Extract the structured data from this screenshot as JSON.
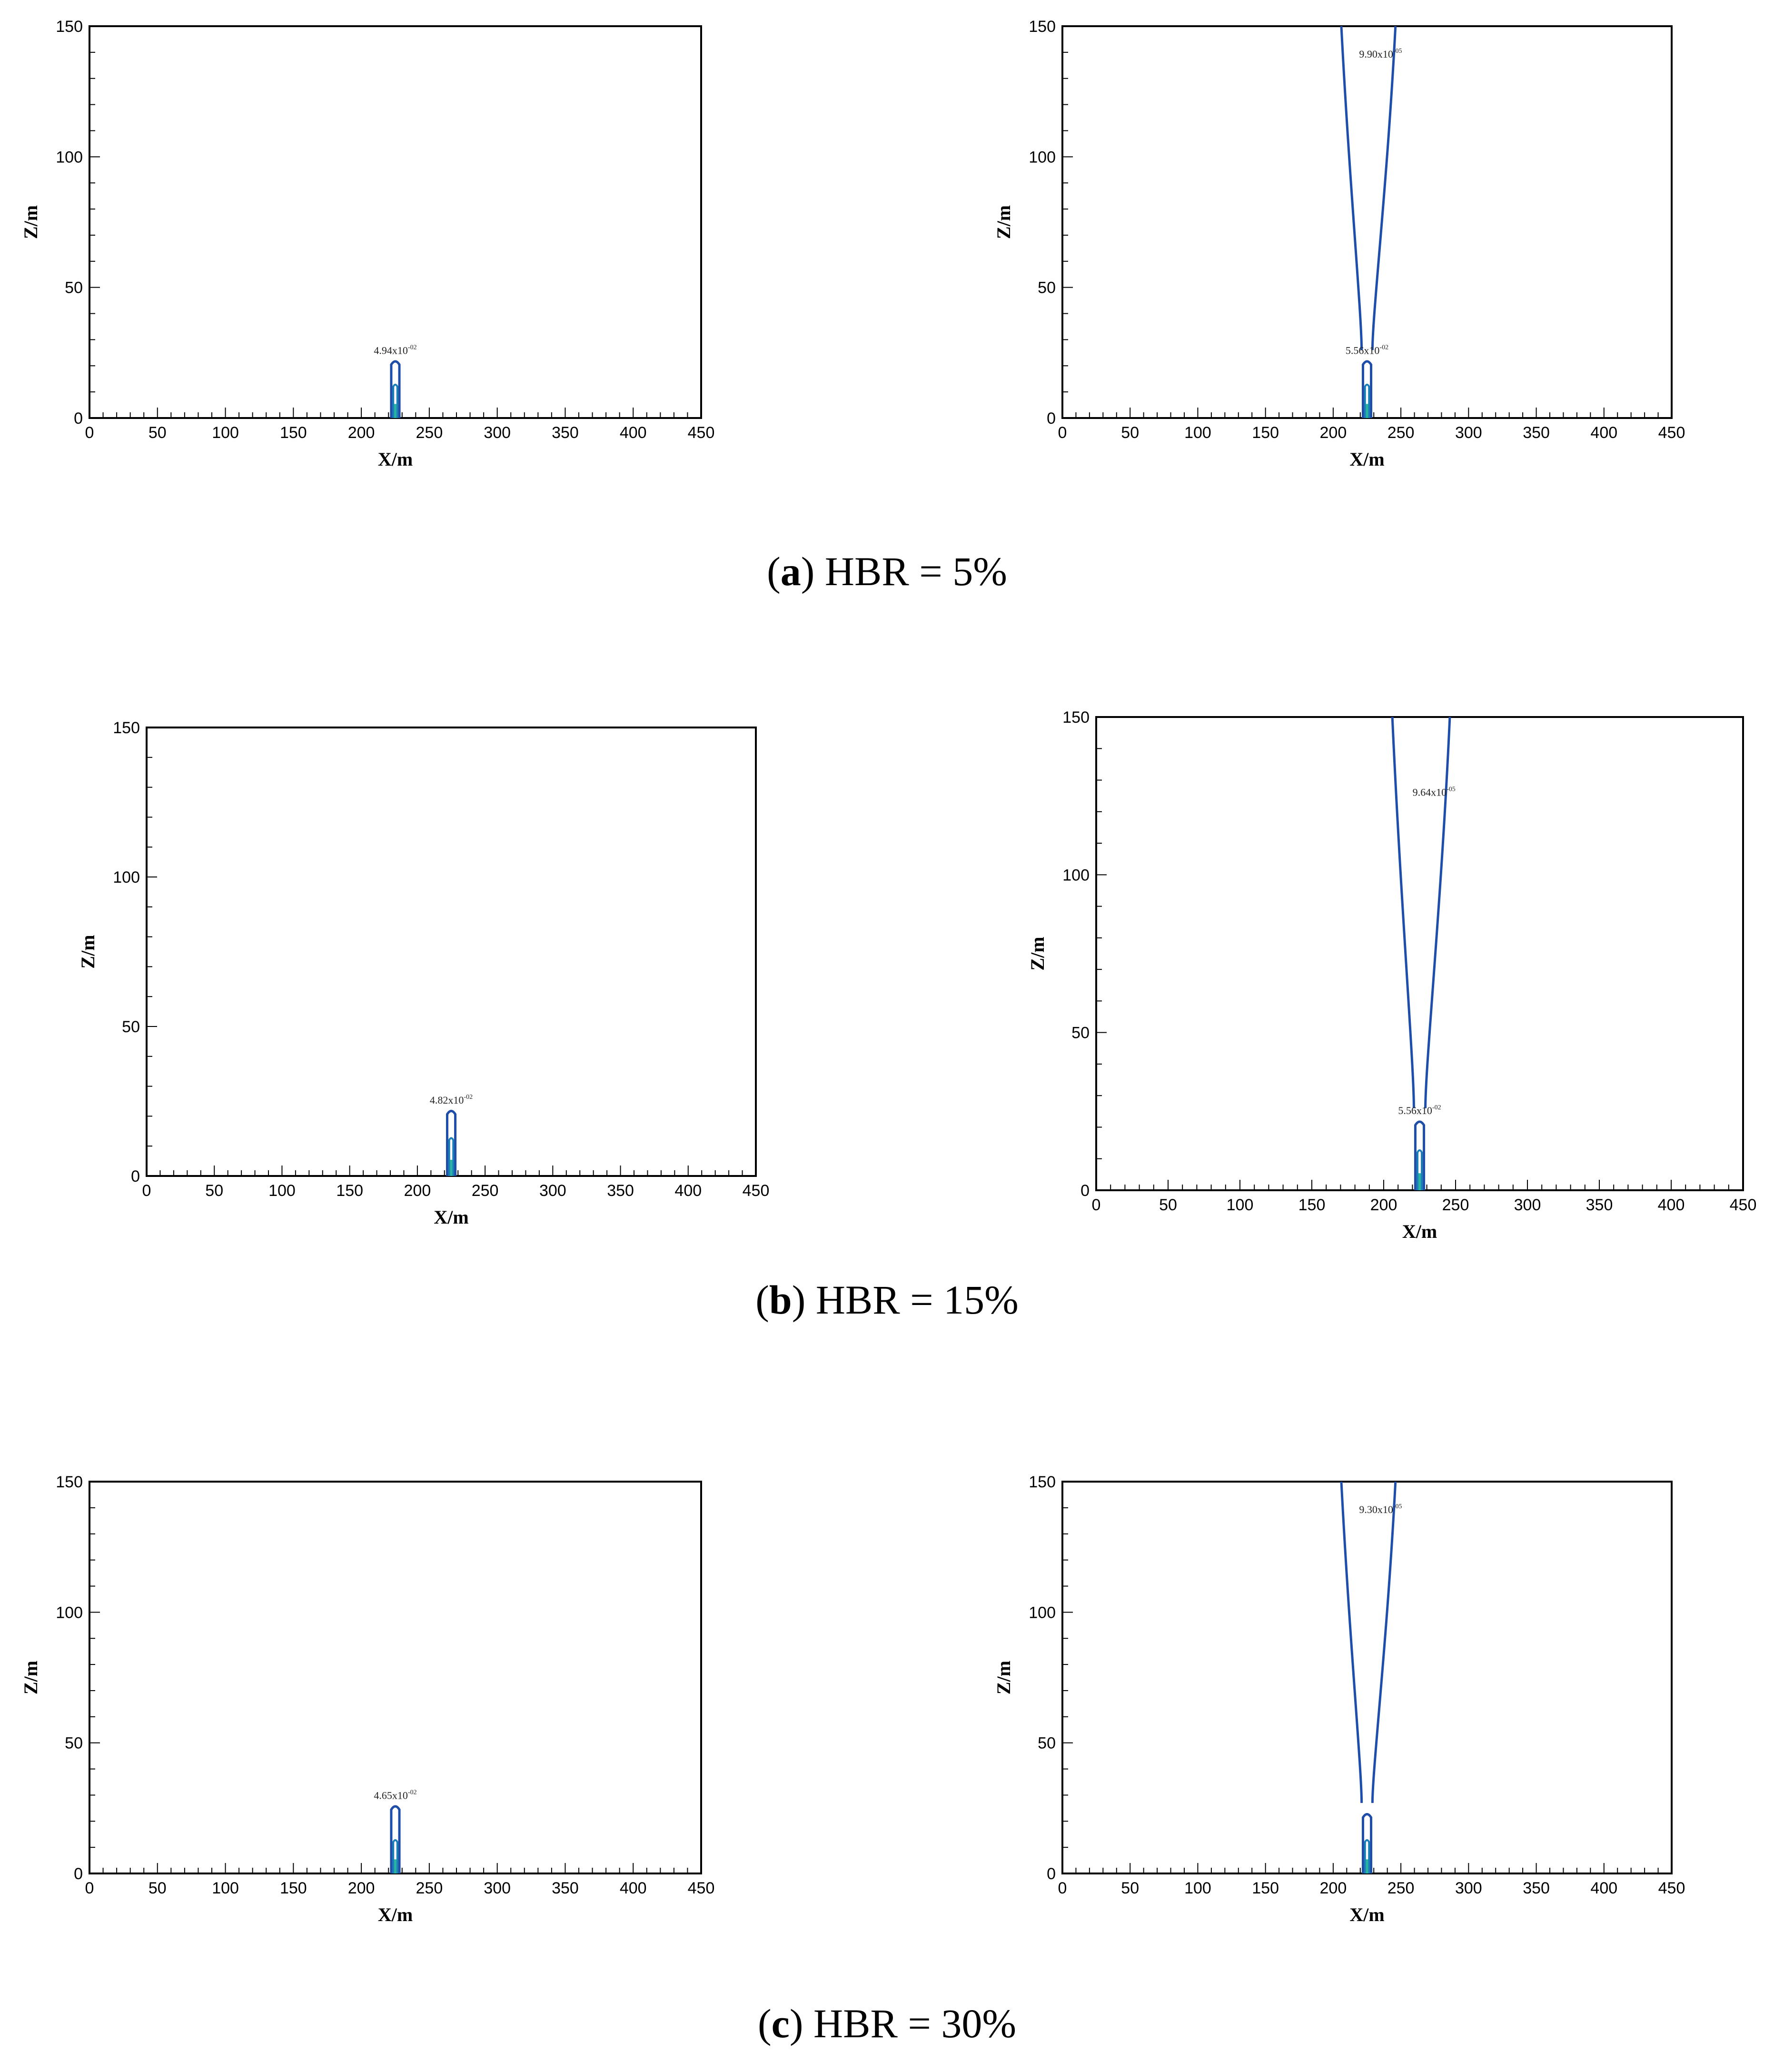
{
  "captions": {
    "a": {
      "letter": "a",
      "text": "HBR = 5%"
    },
    "b": {
      "letter": "b",
      "text": "HBR = 15%"
    },
    "c": {
      "letter": "c",
      "text": "HBR = 30%"
    }
  },
  "colors": {
    "contour_outer": "#1f4ea8",
    "contour_inner": "#1a7fb8",
    "contour_core": "#2ab3a0"
  },
  "chart_data": [
    {
      "type": "contour",
      "panel": "a-left",
      "xlabel": "X/m",
      "ylabel": "Z/m",
      "xlim": [
        0,
        450
      ],
      "ylim": [
        0,
        150
      ],
      "xticks": [
        0,
        50,
        100,
        150,
        200,
        250,
        300,
        350,
        400,
        450
      ],
      "yticks": [
        0,
        50,
        100,
        150
      ],
      "contours": [
        {
          "label": "4.94x10",
          "exp": "-02",
          "x_center": 225,
          "half_width": 3,
          "top": 22,
          "inner_top": 12
        }
      ],
      "plume": null
    },
    {
      "type": "contour",
      "panel": "a-right",
      "xlabel": "X/m",
      "ylabel": "Z/m",
      "xlim": [
        0,
        450
      ],
      "ylim": [
        0,
        150
      ],
      "xticks": [
        0,
        50,
        100,
        150,
        200,
        250,
        300,
        350,
        400,
        450
      ],
      "yticks": [
        0,
        50,
        100,
        150
      ],
      "contours": [
        {
          "label": "5.56x10",
          "exp": "-02",
          "x_center": 225,
          "half_width": 3,
          "top": 22,
          "inner_top": 12
        }
      ],
      "plume": {
        "label": "9.90x10",
        "exp": "-05",
        "x_center": 225,
        "base_halfwidth": 4,
        "top_left": 206,
        "top_right": 246,
        "label_x": 235,
        "label_y": 138
      }
    },
    {
      "type": "contour",
      "panel": "b-left",
      "xlabel": "X/m",
      "ylabel": "Z/m",
      "xlim": [
        0,
        450
      ],
      "ylim": [
        0,
        150
      ],
      "xticks": [
        0,
        50,
        100,
        150,
        200,
        250,
        300,
        350,
        400,
        450
      ],
      "yticks": [
        0,
        50,
        100,
        150
      ],
      "contours": [
        {
          "label": "4.82x10",
          "exp": "-02",
          "x_center": 225,
          "half_width": 3,
          "top": 22,
          "inner_top": 12
        }
      ],
      "plume": null
    },
    {
      "type": "contour",
      "panel": "b-right",
      "xlabel": "X/m",
      "ylabel": "Z/m",
      "xlim": [
        0,
        450
      ],
      "ylim": [
        0,
        150
      ],
      "xticks": [
        0,
        50,
        100,
        150,
        200,
        250,
        300,
        350,
        400,
        450
      ],
      "yticks": [
        0,
        50,
        100,
        150
      ],
      "contours": [
        {
          "label": "5.56x10",
          "exp": "-02",
          "x_center": 225,
          "half_width": 3,
          "top": 22,
          "inner_top": 12
        }
      ],
      "plume": {
        "label": "9.64x10",
        "exp": "-05",
        "x_center": 225,
        "base_halfwidth": 4,
        "top_left": 206,
        "top_right": 246,
        "label_x": 235,
        "label_y": 125
      }
    },
    {
      "type": "contour",
      "panel": "c-left",
      "xlabel": "X/m",
      "ylabel": "Z/m",
      "xlim": [
        0,
        450
      ],
      "ylim": [
        0,
        150
      ],
      "xticks": [
        0,
        50,
        100,
        150,
        200,
        250,
        300,
        350,
        400,
        450
      ],
      "yticks": [
        0,
        50,
        100,
        150
      ],
      "contours": [
        {
          "label": "4.65x10",
          "exp": "-02",
          "x_center": 225,
          "half_width": 3,
          "top": 26,
          "inner_top": 12
        }
      ],
      "plume": null
    },
    {
      "type": "contour",
      "panel": "c-right",
      "xlabel": "X/m",
      "ylabel": "Z/m",
      "xlim": [
        0,
        450
      ],
      "ylim": [
        0,
        150
      ],
      "xticks": [
        0,
        50,
        100,
        150,
        200,
        250,
        300,
        350,
        400,
        450
      ],
      "yticks": [
        0,
        50,
        100,
        150
      ],
      "contours": [
        {
          "label": "",
          "exp": "",
          "x_center": 225,
          "half_width": 3,
          "top": 23,
          "inner_top": 12
        }
      ],
      "plume": {
        "label": "9.30x10",
        "exp": "-05",
        "x_center": 225,
        "base_halfwidth": 4,
        "top_left": 206,
        "top_right": 246,
        "label_x": 235,
        "label_y": 138
      }
    }
  ]
}
